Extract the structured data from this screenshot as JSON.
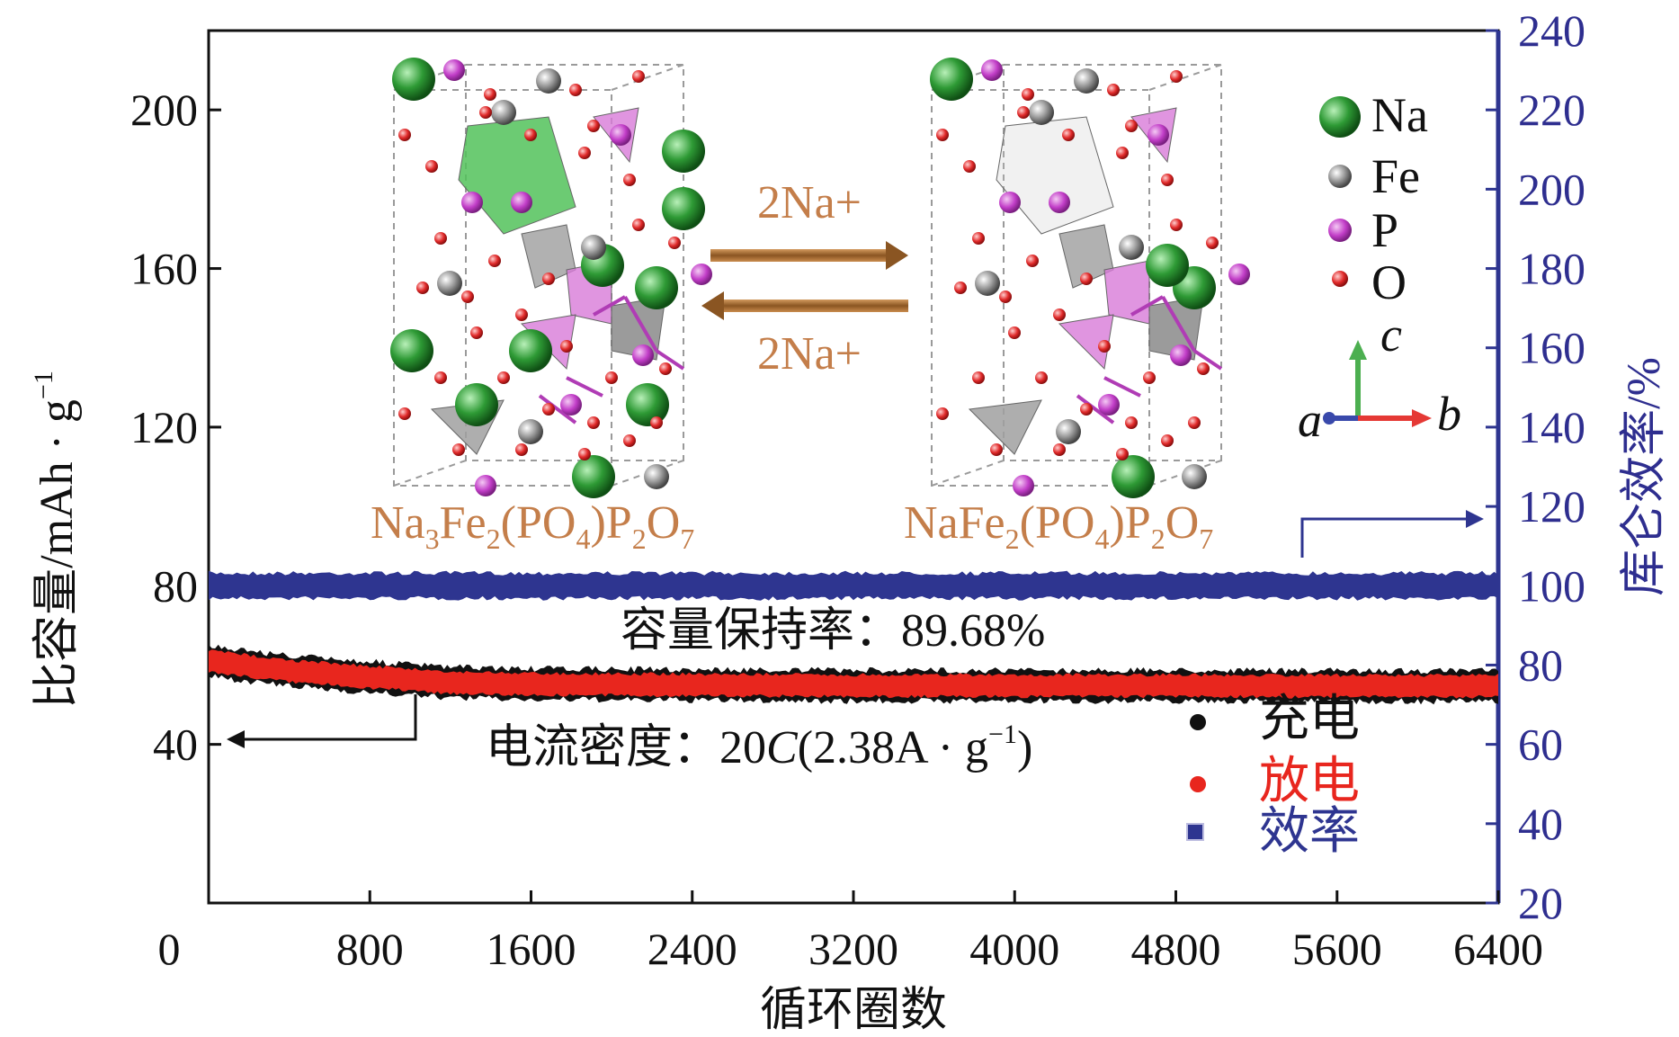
{
  "chart_data": {
    "type": "line",
    "title": "",
    "xlabel": "循环圈数",
    "ylabel": "比容量/mAh · g",
    "ylabel_sup": "−1",
    "y2label": "库仑效率/%",
    "xlim": [
      0,
      6400
    ],
    "ylim": [
      0,
      220
    ],
    "y2lim": [
      20,
      240
    ],
    "x_ticks": [
      "0",
      "800",
      "1600",
      "2400",
      "3200",
      "4000",
      "4800",
      "5600",
      "6400"
    ],
    "y_ticks": [
      "40",
      "80",
      "120",
      "160",
      "200"
    ],
    "y2_ticks": [
      "20",
      "40",
      "60",
      "80",
      "100",
      "120",
      "140",
      "160",
      "180",
      "200",
      "220",
      "240"
    ],
    "series": [
      {
        "name": "充电",
        "axis": "left",
        "color": "#111111",
        "x": [
          0,
          400,
          800,
          1200,
          1600,
          2400,
          3200,
          4000,
          4800,
          5600,
          6400
        ],
        "y": [
          61,
          58.5,
          57,
          55.6,
          55.2,
          55,
          54.8,
          54.8,
          54.8,
          54.7,
          54.7
        ]
      },
      {
        "name": "放电",
        "axis": "left",
        "color": "#e8261e",
        "x": [
          0,
          400,
          800,
          1200,
          1600,
          2400,
          3200,
          4000,
          4800,
          5600,
          6400
        ],
        "y": [
          61,
          58.5,
          57,
          55.6,
          55.2,
          55,
          54.8,
          54.8,
          54.8,
          54.7,
          54.7
        ]
      },
      {
        "name": "效率",
        "axis": "right",
        "color": "#2e3590",
        "x": [
          0,
          800,
          1600,
          2400,
          3200,
          4000,
          4800,
          5600,
          6400
        ],
        "y": [
          100,
          100,
          100,
          100,
          100,
          100,
          100,
          100,
          100
        ]
      }
    ],
    "annotations": {
      "retention": "容量保持率：89.68%",
      "current_density_label": "电流密度：",
      "current_density_value": "20",
      "current_density_c": "C",
      "current_density_paren": "(2.38A · g",
      "current_density_sup": "−1",
      "current_density_close": ")",
      "reaction_forward": "2Na+",
      "reaction_backward": "2Na+"
    },
    "formula_left": {
      "na": "Na",
      "na_sub": "3",
      "fe": "Fe",
      "fe_sub": "2",
      "po": "(PO",
      "po_sub": "4",
      "p": ")P",
      "p_sub": "2",
      "o": "O",
      "o_sub": "7"
    },
    "formula_right": {
      "na": "NaFe",
      "fe_sub": "2",
      "po": "(PO",
      "po_sub": "4",
      "p": ")P",
      "p_sub": "2",
      "o": "O",
      "o_sub": "7"
    },
    "element_legend": [
      "Na",
      "Fe",
      "P",
      "O"
    ],
    "axis_labels": {
      "a": "a",
      "b": "b",
      "c": "c"
    },
    "legend": [
      {
        "label": "充电",
        "color": "#111111"
      },
      {
        "label": "放电",
        "color": "#e8261e"
      },
      {
        "label": "效率",
        "color": "#2e3590"
      }
    ]
  }
}
